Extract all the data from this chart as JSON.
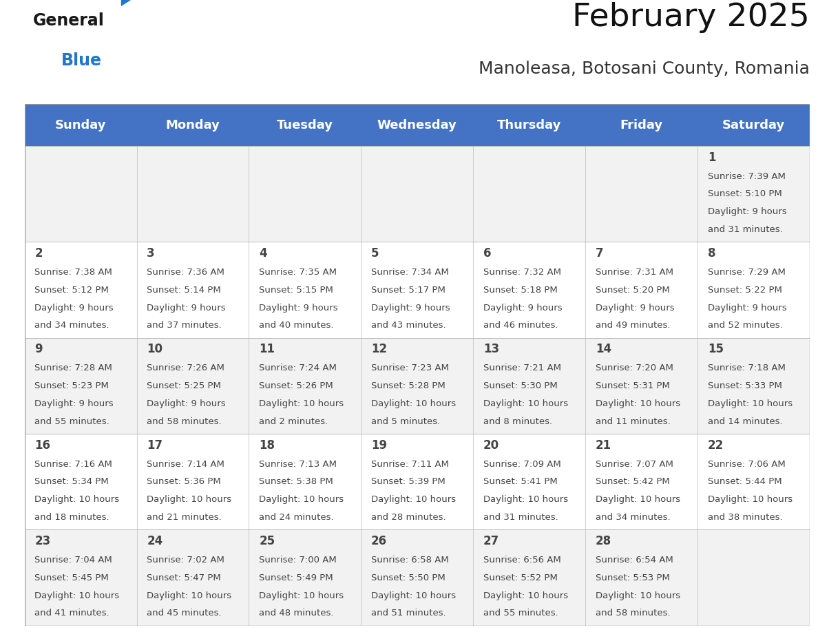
{
  "title": "February 2025",
  "subtitle": "Manoleasa, Botosani County, Romania",
  "header_color": "#4472C4",
  "header_text_color": "#FFFFFF",
  "cell_bg_row0": "#F2F2F2",
  "cell_bg_row1": "#FFFFFF",
  "cell_bg_row2": "#F2F2F2",
  "cell_bg_row3": "#FFFFFF",
  "cell_bg_row4": "#F2F2F2",
  "line_color": "#BBBBBB",
  "text_color": "#444444",
  "day_names": [
    "Sunday",
    "Monday",
    "Tuesday",
    "Wednesday",
    "Thursday",
    "Friday",
    "Saturday"
  ],
  "title_fontsize": 34,
  "subtitle_fontsize": 18,
  "header_fontsize": 13,
  "day_num_fontsize": 12,
  "info_fontsize": 9.5,
  "days": [
    {
      "day": 1,
      "col": 6,
      "row": 0,
      "sunrise": "7:39 AM",
      "sunset": "5:10 PM",
      "daylight_h": "9 hours",
      "daylight_m": "31 minutes."
    },
    {
      "day": 2,
      "col": 0,
      "row": 1,
      "sunrise": "7:38 AM",
      "sunset": "5:12 PM",
      "daylight_h": "9 hours",
      "daylight_m": "34 minutes."
    },
    {
      "day": 3,
      "col": 1,
      "row": 1,
      "sunrise": "7:36 AM",
      "sunset": "5:14 PM",
      "daylight_h": "9 hours",
      "daylight_m": "37 minutes."
    },
    {
      "day": 4,
      "col": 2,
      "row": 1,
      "sunrise": "7:35 AM",
      "sunset": "5:15 PM",
      "daylight_h": "9 hours",
      "daylight_m": "40 minutes."
    },
    {
      "day": 5,
      "col": 3,
      "row": 1,
      "sunrise": "7:34 AM",
      "sunset": "5:17 PM",
      "daylight_h": "9 hours",
      "daylight_m": "43 minutes."
    },
    {
      "day": 6,
      "col": 4,
      "row": 1,
      "sunrise": "7:32 AM",
      "sunset": "5:18 PM",
      "daylight_h": "9 hours",
      "daylight_m": "46 minutes."
    },
    {
      "day": 7,
      "col": 5,
      "row": 1,
      "sunrise": "7:31 AM",
      "sunset": "5:20 PM",
      "daylight_h": "9 hours",
      "daylight_m": "49 minutes."
    },
    {
      "day": 8,
      "col": 6,
      "row": 1,
      "sunrise": "7:29 AM",
      "sunset": "5:22 PM",
      "daylight_h": "9 hours",
      "daylight_m": "52 minutes."
    },
    {
      "day": 9,
      "col": 0,
      "row": 2,
      "sunrise": "7:28 AM",
      "sunset": "5:23 PM",
      "daylight_h": "9 hours",
      "daylight_m": "55 minutes."
    },
    {
      "day": 10,
      "col": 1,
      "row": 2,
      "sunrise": "7:26 AM",
      "sunset": "5:25 PM",
      "daylight_h": "9 hours",
      "daylight_m": "58 minutes."
    },
    {
      "day": 11,
      "col": 2,
      "row": 2,
      "sunrise": "7:24 AM",
      "sunset": "5:26 PM",
      "daylight_h": "10 hours",
      "daylight_m": "2 minutes."
    },
    {
      "day": 12,
      "col": 3,
      "row": 2,
      "sunrise": "7:23 AM",
      "sunset": "5:28 PM",
      "daylight_h": "10 hours",
      "daylight_m": "5 minutes."
    },
    {
      "day": 13,
      "col": 4,
      "row": 2,
      "sunrise": "7:21 AM",
      "sunset": "5:30 PM",
      "daylight_h": "10 hours",
      "daylight_m": "8 minutes."
    },
    {
      "day": 14,
      "col": 5,
      "row": 2,
      "sunrise": "7:20 AM",
      "sunset": "5:31 PM",
      "daylight_h": "10 hours",
      "daylight_m": "11 minutes."
    },
    {
      "day": 15,
      "col": 6,
      "row": 2,
      "sunrise": "7:18 AM",
      "sunset": "5:33 PM",
      "daylight_h": "10 hours",
      "daylight_m": "14 minutes."
    },
    {
      "day": 16,
      "col": 0,
      "row": 3,
      "sunrise": "7:16 AM",
      "sunset": "5:34 PM",
      "daylight_h": "10 hours",
      "daylight_m": "18 minutes."
    },
    {
      "day": 17,
      "col": 1,
      "row": 3,
      "sunrise": "7:14 AM",
      "sunset": "5:36 PM",
      "daylight_h": "10 hours",
      "daylight_m": "21 minutes."
    },
    {
      "day": 18,
      "col": 2,
      "row": 3,
      "sunrise": "7:13 AM",
      "sunset": "5:38 PM",
      "daylight_h": "10 hours",
      "daylight_m": "24 minutes."
    },
    {
      "day": 19,
      "col": 3,
      "row": 3,
      "sunrise": "7:11 AM",
      "sunset": "5:39 PM",
      "daylight_h": "10 hours",
      "daylight_m": "28 minutes."
    },
    {
      "day": 20,
      "col": 4,
      "row": 3,
      "sunrise": "7:09 AM",
      "sunset": "5:41 PM",
      "daylight_h": "10 hours",
      "daylight_m": "31 minutes."
    },
    {
      "day": 21,
      "col": 5,
      "row": 3,
      "sunrise": "7:07 AM",
      "sunset": "5:42 PM",
      "daylight_h": "10 hours",
      "daylight_m": "34 minutes."
    },
    {
      "day": 22,
      "col": 6,
      "row": 3,
      "sunrise": "7:06 AM",
      "sunset": "5:44 PM",
      "daylight_h": "10 hours",
      "daylight_m": "38 minutes."
    },
    {
      "day": 23,
      "col": 0,
      "row": 4,
      "sunrise": "7:04 AM",
      "sunset": "5:45 PM",
      "daylight_h": "10 hours",
      "daylight_m": "41 minutes."
    },
    {
      "day": 24,
      "col": 1,
      "row": 4,
      "sunrise": "7:02 AM",
      "sunset": "5:47 PM",
      "daylight_h": "10 hours",
      "daylight_m": "45 minutes."
    },
    {
      "day": 25,
      "col": 2,
      "row": 4,
      "sunrise": "7:00 AM",
      "sunset": "5:49 PM",
      "daylight_h": "10 hours",
      "daylight_m": "48 minutes."
    },
    {
      "day": 26,
      "col": 3,
      "row": 4,
      "sunrise": "6:58 AM",
      "sunset": "5:50 PM",
      "daylight_h": "10 hours",
      "daylight_m": "51 minutes."
    },
    {
      "day": 27,
      "col": 4,
      "row": 4,
      "sunrise": "6:56 AM",
      "sunset": "5:52 PM",
      "daylight_h": "10 hours",
      "daylight_m": "55 minutes."
    },
    {
      "day": 28,
      "col": 5,
      "row": 4,
      "sunrise": "6:54 AM",
      "sunset": "5:53 PM",
      "daylight_h": "10 hours",
      "daylight_m": "58 minutes."
    }
  ],
  "logo_color_general": "#1a1a1a",
  "logo_color_blue": "#2277CC",
  "logo_triangle_color": "#2277CC"
}
